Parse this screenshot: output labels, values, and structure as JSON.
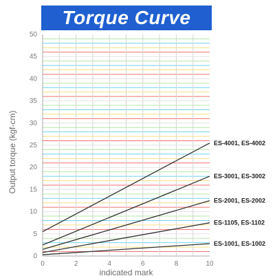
{
  "chart_data": {
    "type": "line",
    "title": "Torque Curve",
    "xlabel": "indicated mark",
    "ylabel": "Output torque (kgf-cm)",
    "xlim": [
      0,
      10
    ],
    "ylim": [
      0,
      50
    ],
    "x_ticks": [
      "0",
      "2",
      "4",
      "6",
      "8",
      "10"
    ],
    "y_ticks": [
      "0",
      "5",
      "10",
      "15",
      "20",
      "25",
      "30",
      "35",
      "40",
      "45",
      "50"
    ],
    "grid": true,
    "legend": "right-of-lines",
    "series": [
      {
        "name": "ES-4001, ES-4002",
        "x": [
          0,
          10
        ],
        "y": [
          5.5,
          25.5
        ],
        "color": "#333333"
      },
      {
        "name": "ES-3001, ES-3002",
        "x": [
          0,
          10
        ],
        "y": [
          2.5,
          18.0
        ],
        "color": "#333333"
      },
      {
        "name": "ES-2001, ES-2002",
        "x": [
          0,
          10
        ],
        "y": [
          1.5,
          12.5
        ],
        "color": "#333333"
      },
      {
        "name": "ES-1105, ES-1102",
        "x": [
          0,
          10
        ],
        "y": [
          0.8,
          7.5
        ],
        "color": "#333333"
      },
      {
        "name": "ES-1001, ES-1002",
        "x": [
          0,
          10
        ],
        "y": [
          0.3,
          2.8
        ],
        "color": "#333333"
      }
    ],
    "colors": {
      "banner": "#1f5fd0",
      "band_cycle": [
        "#e9413f",
        "#f2d55a",
        "#3ec3e6",
        "#9ee08b",
        "#d9d9d9"
      ]
    }
  }
}
